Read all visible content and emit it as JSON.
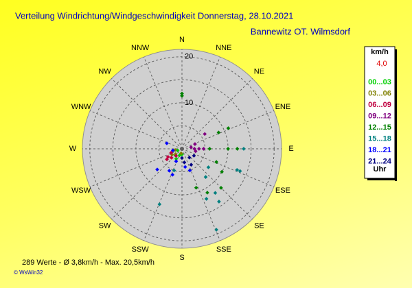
{
  "chart_data": {
    "type": "polar-scatter",
    "title": "Verteilung Windrichtung/Windgeschwindigkeit  Donnerstag, 28.10.2021",
    "subtitle": "Bannewitz OT. Wilmsdorf",
    "directions": [
      "N",
      "NNE",
      "NE",
      "ENE",
      "E",
      "ESE",
      "SE",
      "SSE",
      "S",
      "SSW",
      "SW",
      "WSW",
      "W",
      "WNW",
      "NW",
      "NNW"
    ],
    "rlim": [
      0,
      21.6
    ],
    "rticks": [
      10,
      20
    ],
    "rgrid": [
      5,
      10,
      15,
      20
    ],
    "legend_title": "km/h",
    "current_value": "4,0",
    "legend_footer": "Uhr",
    "series": [
      {
        "name": "00...03",
        "color": "#00d000",
        "direction": [
          200,
          225,
          250,
          180,
          210
        ],
        "values": [
          1.5,
          2,
          1,
          1.2,
          2.5
        ]
      },
      {
        "name": "03...06",
        "color": "#808000",
        "direction": [
          190,
          230,
          240,
          260
        ],
        "values": [
          1,
          1.8,
          2.5,
          1.5
        ]
      },
      {
        "name": "06...09",
        "color": "#c00040",
        "direction": [
          230,
          235,
          240,
          220,
          250
        ],
        "values": [
          3,
          4,
          3.5,
          2,
          2.5
        ]
      },
      {
        "name": "09...12",
        "color": "#800080",
        "direction": [
          90,
          90,
          90,
          57,
          80,
          70,
          100
        ],
        "values": [
          2.7,
          3.7,
          4.7,
          5.9,
          2,
          3,
          3
        ]
      },
      {
        "name": "12...15",
        "color": "#008000",
        "direction": [
          0,
          66,
          66,
          90,
          90,
          90,
          111,
          120,
          135,
          150,
          160,
          0
        ],
        "values": [
          11.5,
          8.7,
          11,
          6,
          10,
          12,
          8,
          10,
          12,
          11,
          9,
          12
        ]
      },
      {
        "name": "15...18",
        "color": "#008080",
        "direction": [
          90,
          111,
          111,
          143,
          145,
          157,
          154,
          202,
          200,
          140,
          125
        ],
        "values": [
          13.4,
          12.8,
          13.5,
          12,
          14,
          19.1,
          12.1,
          13,
          5,
          8,
          7
        ]
      },
      {
        "name": "18...21",
        "color": "#0000ff",
        "direction": [
          290,
          260,
          205,
          200,
          210,
          230,
          170,
          160
        ],
        "values": [
          3.5,
          2,
          3,
          6,
          5.5,
          7,
          4,
          5
        ]
      },
      {
        "name": "21...24",
        "color": "#000080",
        "direction": [
          120,
          150,
          170,
          180,
          140
        ],
        "values": [
          3,
          4,
          3,
          2,
          2.5
        ]
      }
    ],
    "footer": "289 Werte   -   Ø 3,8km/h  -  Max. 20,5km/h",
    "credit": "© WsWin32"
  }
}
